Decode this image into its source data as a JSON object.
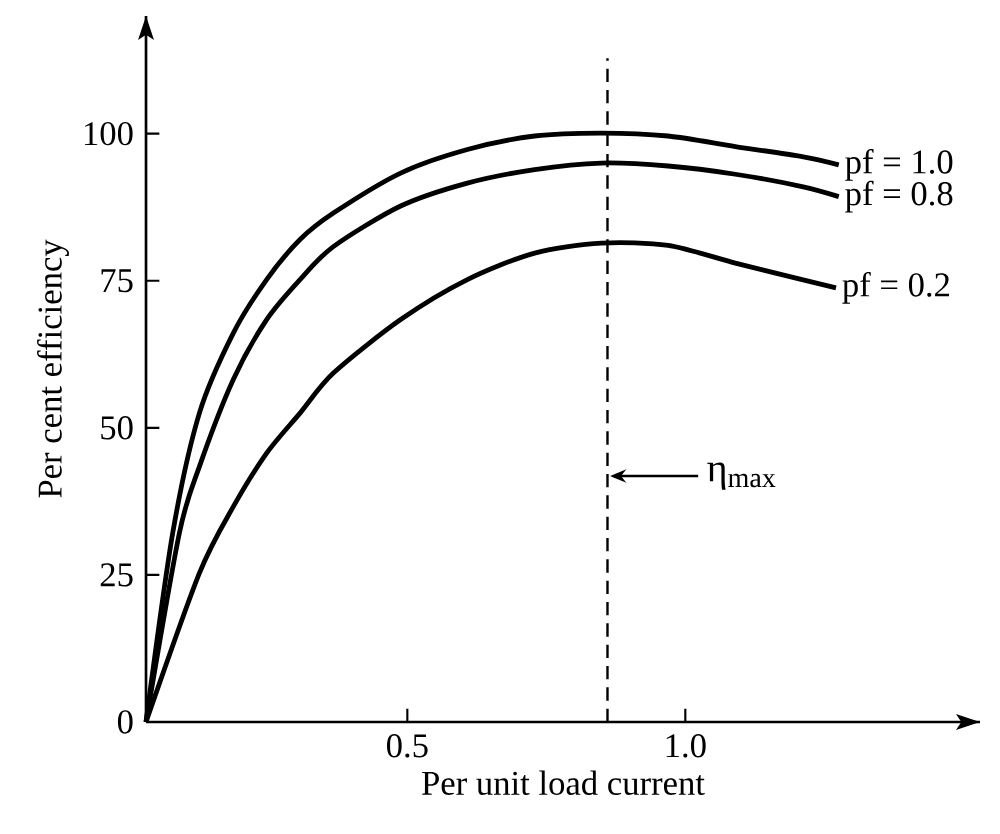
{
  "chart_data": {
    "type": "line",
    "xlabel": "Per unit load current",
    "ylabel": "Per cent efficiency",
    "xlim": [
      0.03,
      1.53
    ],
    "ylim": [
      0,
      120
    ],
    "xticks": [
      0.5,
      {
        "value": 1.0,
        "label": "1.0"
      }
    ],
    "yticks": [
      0,
      25,
      50,
      75,
      100
    ],
    "legend": false,
    "grid": false,
    "marker": "none",
    "line_style": "solid",
    "series": [
      {
        "name": "pf = 1.0",
        "color": "#000000",
        "x": [
          0.03,
          0.078,
          0.126,
          0.187,
          0.247,
          0.307,
          0.367,
          0.488,
          0.608,
          0.729,
          0.849,
          0.969,
          1.09,
          1.21,
          1.276
        ],
        "values": [
          0,
          32.1,
          52.5,
          66.1,
          75.2,
          82.0,
          86.5,
          93.3,
          97.3,
          99.6,
          100.1,
          99.6,
          97.8,
          96.1,
          94.7
        ]
      },
      {
        "name": "pf = 0.8",
        "color": "#000000",
        "x": [
          0.03,
          0.09,
          0.126,
          0.187,
          0.247,
          0.307,
          0.367,
          0.488,
          0.608,
          0.729,
          0.849,
          0.969,
          1.09,
          1.21,
          1.276
        ],
        "values": [
          0,
          32.1,
          43.4,
          58.2,
          68.4,
          75.2,
          80.8,
          87.7,
          91.6,
          93.9,
          95.0,
          94.5,
          93.1,
          91.0,
          89.3
        ]
      },
      {
        "name": "pf = 0.2",
        "color": "#000000",
        "x": [
          0.03,
          0.126,
          0.187,
          0.247,
          0.307,
          0.367,
          0.488,
          0.608,
          0.729,
          0.849,
          0.969,
          1.09,
          1.21,
          1.271
        ],
        "values": [
          0,
          25.3,
          36.6,
          45.7,
          52.5,
          59.3,
          68.4,
          75.2,
          79.7,
          81.4,
          81.0,
          78.0,
          75.2,
          73.8
        ]
      }
    ],
    "ref_lines": [
      {
        "axis": "x",
        "value": 0.86,
        "color": "#000000",
        "line_style": "dashed"
      }
    ],
    "annotations": [
      {
        "text": "η$_{max}$",
        "x": 0.86,
        "y": 41.8
      }
    ]
  }
}
